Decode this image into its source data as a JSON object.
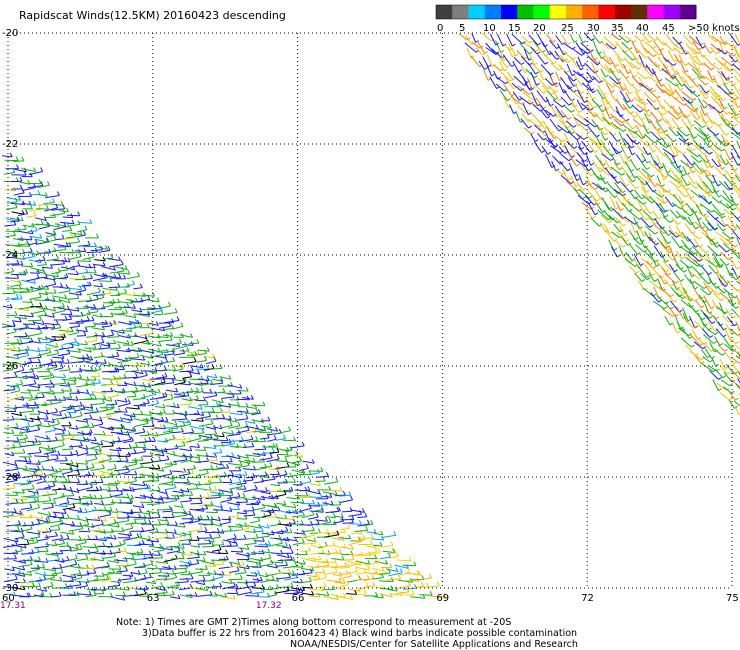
{
  "title": "Rapidscat Winds(12.5KM) 20160423 descending",
  "legend": {
    "ticks": [
      "0",
      "5",
      "10",
      "15",
      "20",
      "25",
      "30",
      "35",
      "40",
      "45",
      ">50 knots"
    ],
    "colors": [
      "#404040",
      "#7f7f7f",
      "#00d0ff",
      "#0080ff",
      "#0000ff",
      "#00c000",
      "#00ff00",
      "#ffff00",
      "#ffb000",
      "#ff6000",
      "#ff0000",
      "#a00000",
      "#603000",
      "#ff00ff",
      "#a000ff",
      "#600090"
    ]
  },
  "axes": {
    "lat_labels": [
      "-20",
      "-22",
      "-24",
      "-26",
      "-28",
      "-30"
    ],
    "lon_labels": [
      "60",
      "63",
      "66",
      "69",
      "72",
      "75"
    ],
    "lat_values": [
      -20,
      -22,
      -24,
      -26,
      -28,
      -30
    ],
    "lon_values": [
      60,
      63,
      66,
      69,
      72,
      75
    ]
  },
  "times": [
    {
      "label": "17.31",
      "lon": 60,
      "color": "#800080"
    },
    {
      "label": "17.32",
      "lon": 65.3,
      "color": "#800080"
    }
  ],
  "notes": [
    "Note: 1) Times are GMT 2)Times along bottom correspond to measurement at -20S",
    "3)Data buffer is 22 hrs from 20160423 4) Black wind barbs indicate possible contamination",
    "NOAA/NESDIS/Center for Satellite Applications and Research"
  ],
  "swaths": {
    "west": {
      "description_visible": false,
      "dominant_colors": [
        "#0000ff",
        "#00c000",
        "#ffd000"
      ]
    },
    "east": {
      "description_visible": false,
      "dominant_colors": [
        "#00c000",
        "#ffd000",
        "#ff8000"
      ]
    }
  }
}
